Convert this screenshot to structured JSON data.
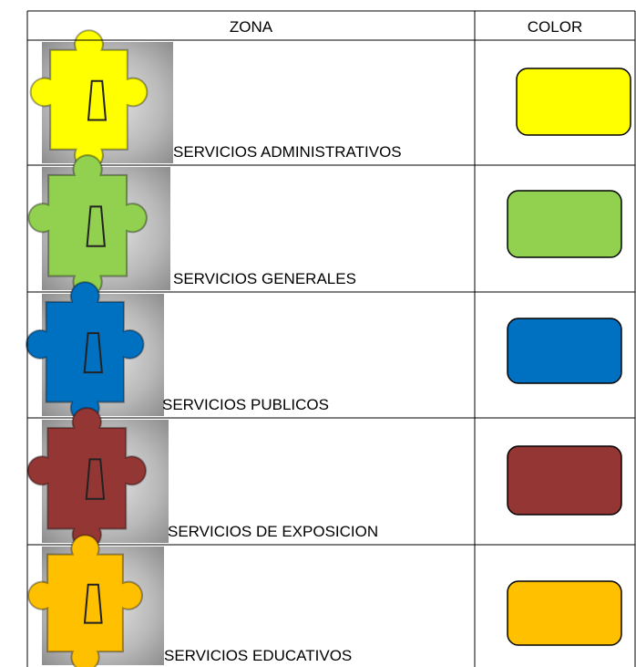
{
  "table": {
    "columns": [
      "ZONA",
      "COLOR"
    ],
    "rows": [
      {
        "label": "SERVICIOS ADMINISTRATIVOS",
        "color": "#ffff00"
      },
      {
        "label": "SERVICIOS GENERALES",
        "color": "#92d050"
      },
      {
        "label": "SERVICIOS PUBLICOS",
        "color": "#0070c0"
      },
      {
        "label": "SERVICIOS DE EXPOSICION",
        "color": "#943634"
      },
      {
        "label": "SERVICIOS EDUCATIVOS",
        "color": "#ffc000"
      }
    ]
  }
}
